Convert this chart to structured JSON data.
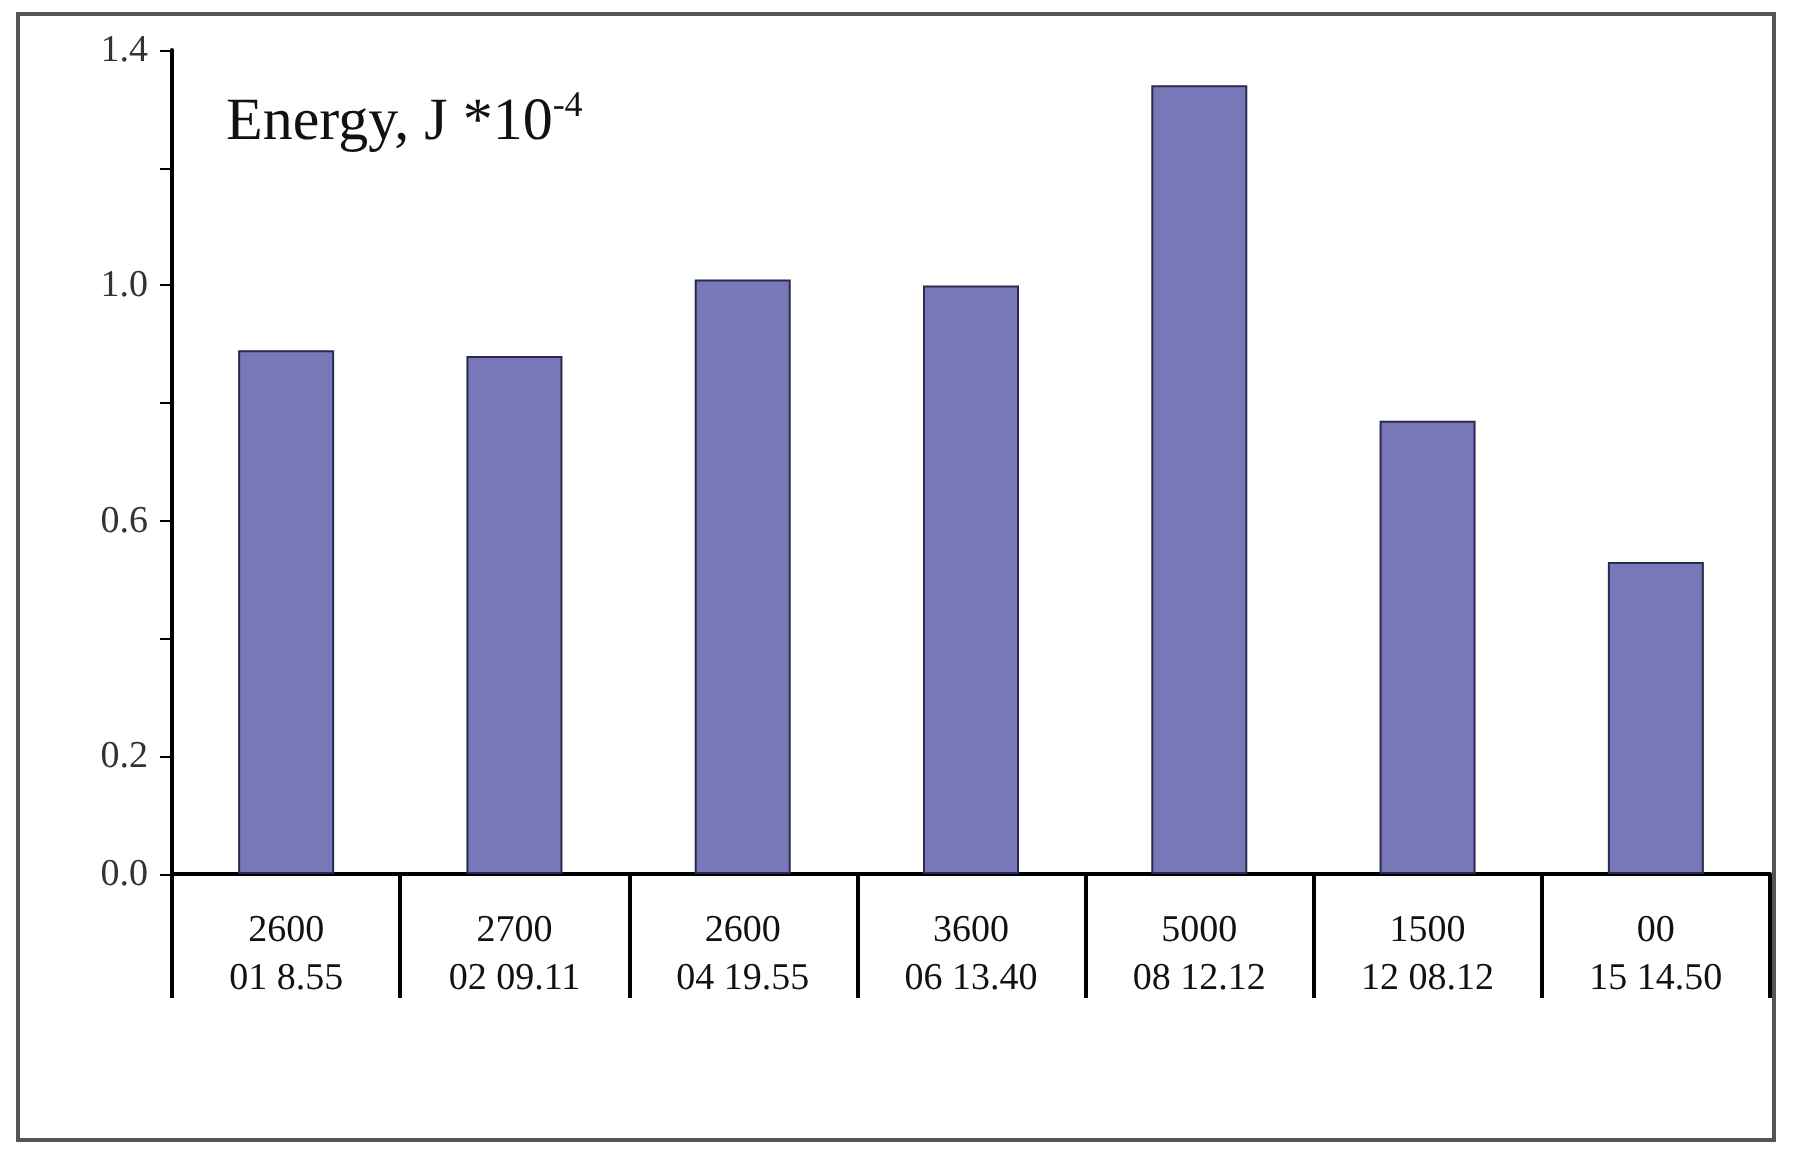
{
  "chart_data": {
    "type": "bar",
    "title": "Energy, J *10$^{-4}$",
    "categories": [
      "2600\n01 8.55",
      "2700\n02 09.11",
      "2600\n04 19.55",
      "3600\n06 13.40",
      "5000\n08 12.12",
      "1500\n12 08.12",
      "00\n15 14.50"
    ],
    "values": [
      0.89,
      0.88,
      1.01,
      1.0,
      1.34,
      0.77,
      0.53
    ],
    "color": "#7878b8",
    "ylim": [
      0,
      1.4
    ],
    "yticks": [
      {
        "value": 0,
        "label": "0.0"
      },
      {
        "value": 0.2,
        "label": "0.2"
      },
      {
        "value": 0.4,
        "label": null
      },
      {
        "value": 0.6,
        "label": "0.6"
      },
      {
        "value": 0.8,
        "label": null
      },
      {
        "value": 1.0,
        "label": "1.0"
      },
      {
        "value": 1.2,
        "label": null
      },
      {
        "value": 1.4,
        "label": "1.4"
      }
    ],
    "grid": false
  }
}
